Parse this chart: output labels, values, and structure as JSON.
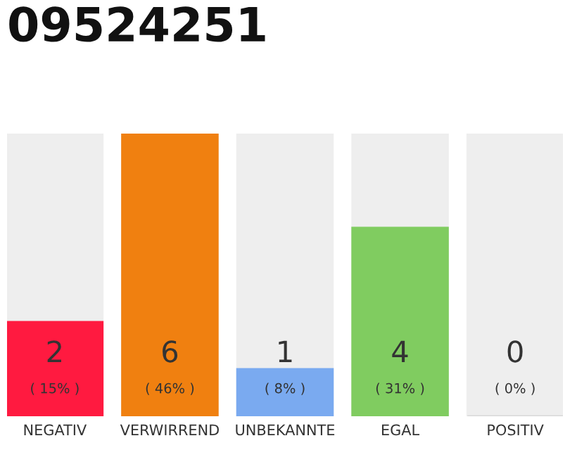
{
  "chart_data": {
    "type": "bar",
    "title": "09524251",
    "categories": [
      "NEGATIV",
      "VERWIRREND",
      "UNBEKANNTE",
      "EGAL",
      "POSITIV"
    ],
    "values": [
      2,
      6,
      1,
      4,
      0
    ],
    "colors": [
      "#ff1a40",
      "#f08010",
      "#7aaaf0",
      "#80cc60",
      "#d8d8d8"
    ],
    "value_labels": [
      "2\n( 15% )",
      "6\n( 46% )",
      "1\n( 8% )",
      "4\n( 31% )",
      "0\n( 0% )"
    ],
    "ylim": [
      0,
      6
    ],
    "grid": false,
    "legend": false
  }
}
